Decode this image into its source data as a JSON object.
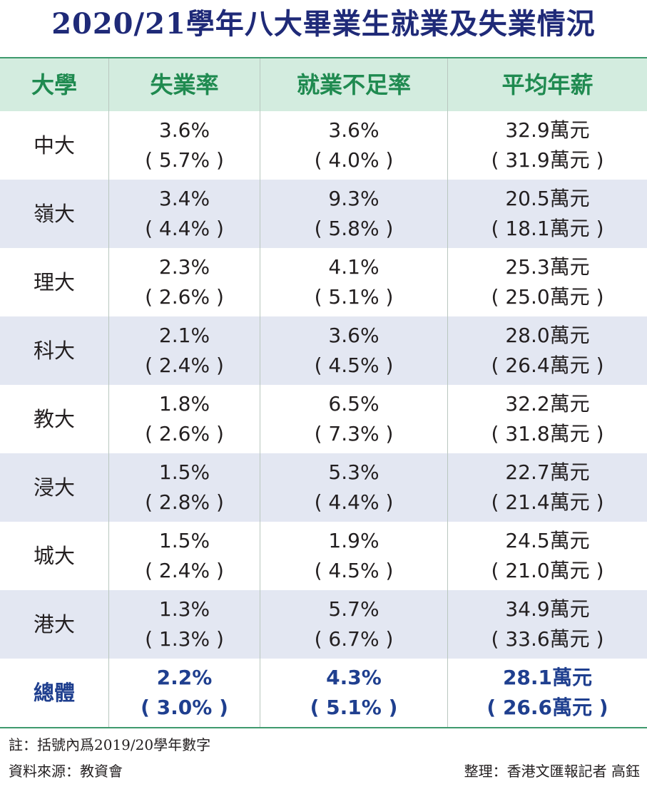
{
  "title": "2020/21學年八大畢業生就業及失業情況",
  "chart_data": {
    "type": "table",
    "columns": [
      "大學",
      "失業率",
      "就業不足率",
      "平均年薪"
    ],
    "rows": [
      {
        "university": "中大",
        "unemployment": "3.6%",
        "unemployment_prev": "5.7%",
        "underemployment": "3.6%",
        "underemployment_prev": "4.0%",
        "salary": "32.9萬元",
        "salary_prev": "31.9萬元"
      },
      {
        "university": "嶺大",
        "unemployment": "3.4%",
        "unemployment_prev": "4.4%",
        "underemployment": "9.3%",
        "underemployment_prev": "5.8%",
        "salary": "20.5萬元",
        "salary_prev": "18.1萬元"
      },
      {
        "university": "理大",
        "unemployment": "2.3%",
        "unemployment_prev": "2.6%",
        "underemployment": "4.1%",
        "underemployment_prev": "5.1%",
        "salary": "25.3萬元",
        "salary_prev": "25.0萬元"
      },
      {
        "university": "科大",
        "unemployment": "2.1%",
        "unemployment_prev": "2.4%",
        "underemployment": "3.6%",
        "underemployment_prev": "4.5%",
        "salary": "28.0萬元",
        "salary_prev": "26.4萬元"
      },
      {
        "university": "教大",
        "unemployment": "1.8%",
        "unemployment_prev": "2.6%",
        "underemployment": "6.5%",
        "underemployment_prev": "7.3%",
        "salary": "32.2萬元",
        "salary_prev": "31.8萬元"
      },
      {
        "university": "浸大",
        "unemployment": "1.5%",
        "unemployment_prev": "2.8%",
        "underemployment": "5.3%",
        "underemployment_prev": "4.4%",
        "salary": "22.7萬元",
        "salary_prev": "21.4萬元"
      },
      {
        "university": "城大",
        "unemployment": "1.5%",
        "unemployment_prev": "2.4%",
        "underemployment": "1.9%",
        "underemployment_prev": "4.5%",
        "salary": "24.5萬元",
        "salary_prev": "21.0萬元"
      },
      {
        "university": "港大",
        "unemployment": "1.3%",
        "unemployment_prev": "1.3%",
        "underemployment": "5.7%",
        "underemployment_prev": "6.7%",
        "salary": "34.9萬元",
        "salary_prev": "33.6萬元"
      }
    ],
    "total": {
      "university": "總體",
      "unemployment": "2.2%",
      "unemployment_prev": "3.0%",
      "underemployment": "4.3%",
      "underemployment_prev": "5.1%",
      "salary": "28.1萬元",
      "salary_prev": "26.6萬元"
    }
  },
  "notes": {
    "footnote": "註：括號內爲2019/20學年數字",
    "source": "資料來源：教資會",
    "credit": "整理：香港文匯報記者 高鈺"
  },
  "colors": {
    "title": "#1f2a78",
    "header_background": "#d3ecdf",
    "header_text": "#1f8a50",
    "row_alt_background": "#e3e7f2",
    "total_text": "#1f3f8f",
    "rule": "#3e9a6d"
  }
}
